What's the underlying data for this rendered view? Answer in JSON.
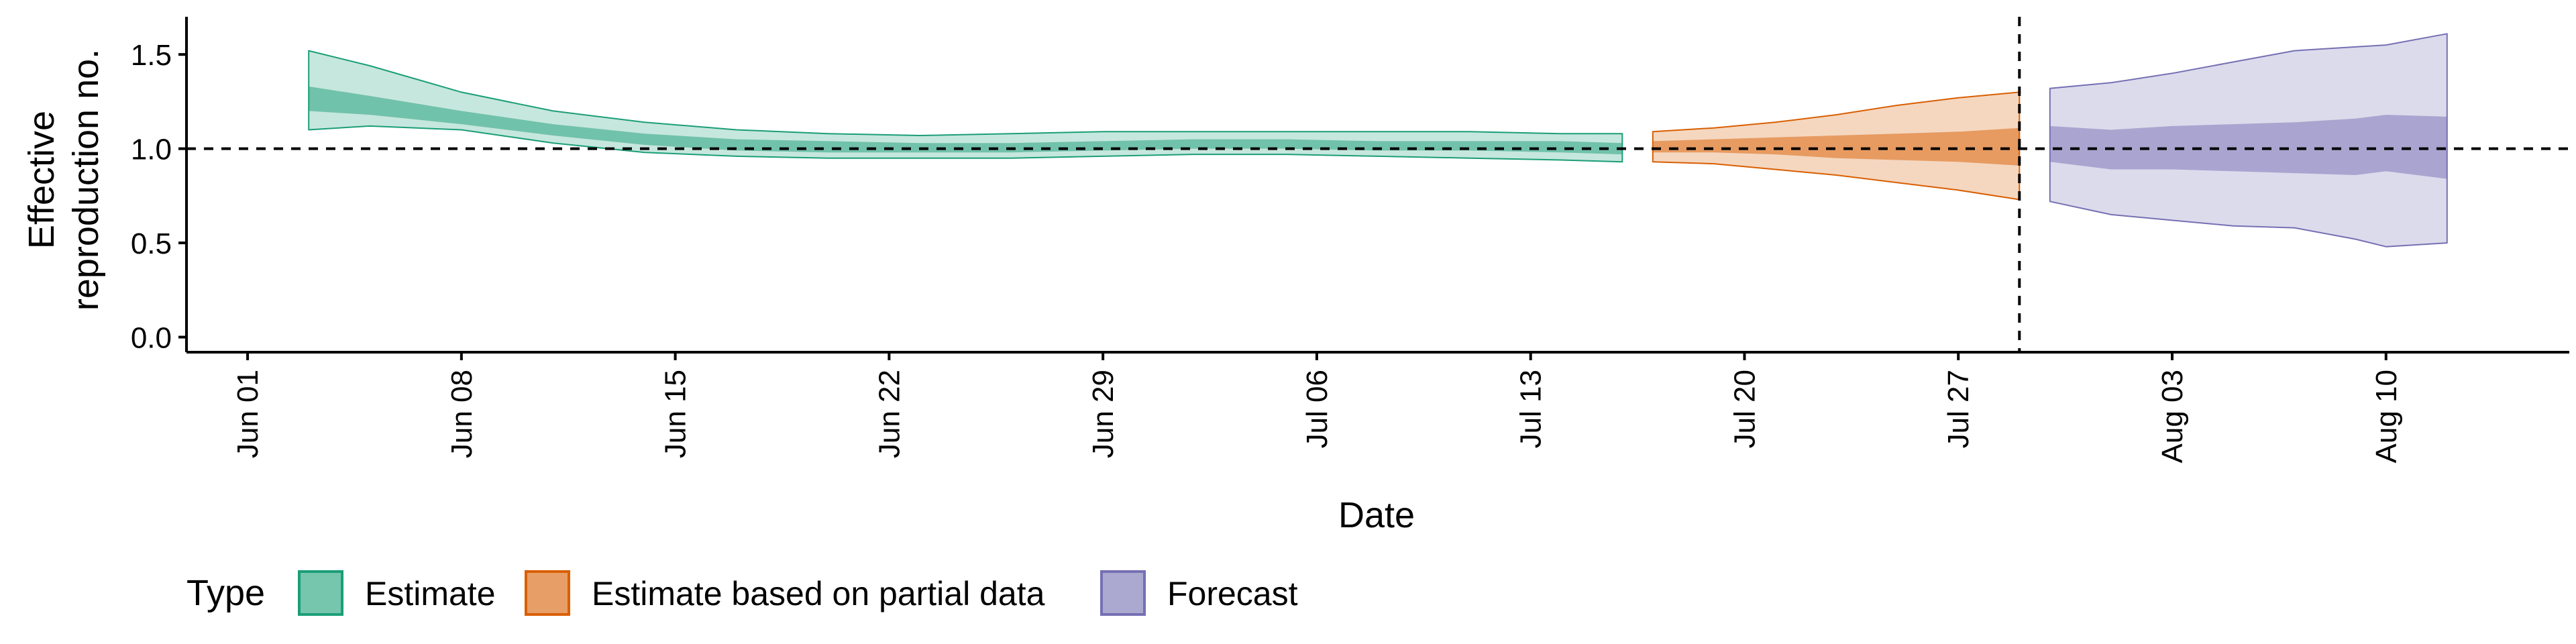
{
  "chart_data": {
    "type": "area",
    "xlabel": "Date",
    "ylabel": [
      "Effective",
      "reproduction no."
    ],
    "ylim": [
      -0.08,
      1.7
    ],
    "xlim": [
      "2020-05-30",
      "2020-08-16"
    ],
    "y_ticks": [
      0.0,
      0.5,
      1.0,
      1.5
    ],
    "y_tick_labels": [
      "0.0",
      "0.5",
      "1.0",
      "1.5"
    ],
    "x_ticks": [
      "2020-06-01",
      "2020-06-08",
      "2020-06-15",
      "2020-06-22",
      "2020-06-29",
      "2020-07-06",
      "2020-07-13",
      "2020-07-20",
      "2020-07-27",
      "2020-08-03",
      "2020-08-10"
    ],
    "x_tick_labels": [
      "Jun 01",
      "Jun 08",
      "Jun 15",
      "Jun 22",
      "Jun 29",
      "Jul 06",
      "Jul 13",
      "Jul 20",
      "Jul 27",
      "Aug 03",
      "Aug 10"
    ],
    "reference_hline": 1.0,
    "reference_vline": "2020-07-29",
    "grid": false,
    "legend": {
      "title": "Type",
      "position": "bottom",
      "entries": [
        "Estimate",
        "Estimate based on partial data",
        "Forecast"
      ]
    },
    "series": [
      {
        "name": "Estimate",
        "fill": "#1b9e77",
        "dates": [
          "2020-06-03",
          "2020-06-05",
          "2020-06-08",
          "2020-06-11",
          "2020-06-14",
          "2020-06-17",
          "2020-06-20",
          "2020-06-23",
          "2020-06-26",
          "2020-06-29",
          "2020-07-02",
          "2020-07-05",
          "2020-07-08",
          "2020-07-11",
          "2020-07-14",
          "2020-07-16"
        ],
        "lower90": [
          1.1,
          1.12,
          1.1,
          1.03,
          0.98,
          0.96,
          0.95,
          0.95,
          0.95,
          0.96,
          0.97,
          0.97,
          0.96,
          0.95,
          0.94,
          0.93
        ],
        "upper90": [
          1.52,
          1.44,
          1.3,
          1.2,
          1.14,
          1.1,
          1.08,
          1.07,
          1.08,
          1.09,
          1.09,
          1.09,
          1.09,
          1.09,
          1.08,
          1.08
        ],
        "lower50": [
          1.2,
          1.18,
          1.13,
          1.07,
          1.02,
          0.99,
          0.98,
          0.98,
          0.98,
          0.99,
          1.0,
          1.0,
          0.99,
          0.99,
          0.98,
          0.97
        ],
        "upper50": [
          1.33,
          1.28,
          1.2,
          1.13,
          1.08,
          1.05,
          1.04,
          1.03,
          1.03,
          1.04,
          1.05,
          1.05,
          1.04,
          1.04,
          1.04,
          1.03
        ]
      },
      {
        "name": "Estimate based on partial data",
        "fill": "#d95f02",
        "dates": [
          "2020-07-17",
          "2020-07-19",
          "2020-07-21",
          "2020-07-23",
          "2020-07-25",
          "2020-07-27",
          "2020-07-29"
        ],
        "lower90": [
          0.93,
          0.92,
          0.89,
          0.86,
          0.82,
          0.78,
          0.73
        ],
        "upper90": [
          1.09,
          1.11,
          1.14,
          1.18,
          1.23,
          1.27,
          1.3
        ],
        "lower50": [
          0.98,
          0.98,
          0.97,
          0.95,
          0.94,
          0.93,
          0.91
        ],
        "upper50": [
          1.04,
          1.05,
          1.06,
          1.07,
          1.08,
          1.09,
          1.11
        ]
      },
      {
        "name": "Forecast",
        "fill": "#7570b3",
        "dates": [
          "2020-07-30",
          "2020-08-01",
          "2020-08-03",
          "2020-08-05",
          "2020-08-07",
          "2020-08-09",
          "2020-08-10",
          "2020-08-12"
        ],
        "lower90": [
          0.72,
          0.65,
          0.62,
          0.59,
          0.58,
          0.52,
          0.48,
          0.5
        ],
        "upper90": [
          1.32,
          1.35,
          1.4,
          1.46,
          1.52,
          1.54,
          1.55,
          1.61
        ],
        "lower50": [
          0.93,
          0.89,
          0.89,
          0.88,
          0.87,
          0.86,
          0.88,
          0.84
        ],
        "upper50": [
          1.12,
          1.1,
          1.12,
          1.13,
          1.14,
          1.16,
          1.18,
          1.17
        ]
      }
    ]
  }
}
